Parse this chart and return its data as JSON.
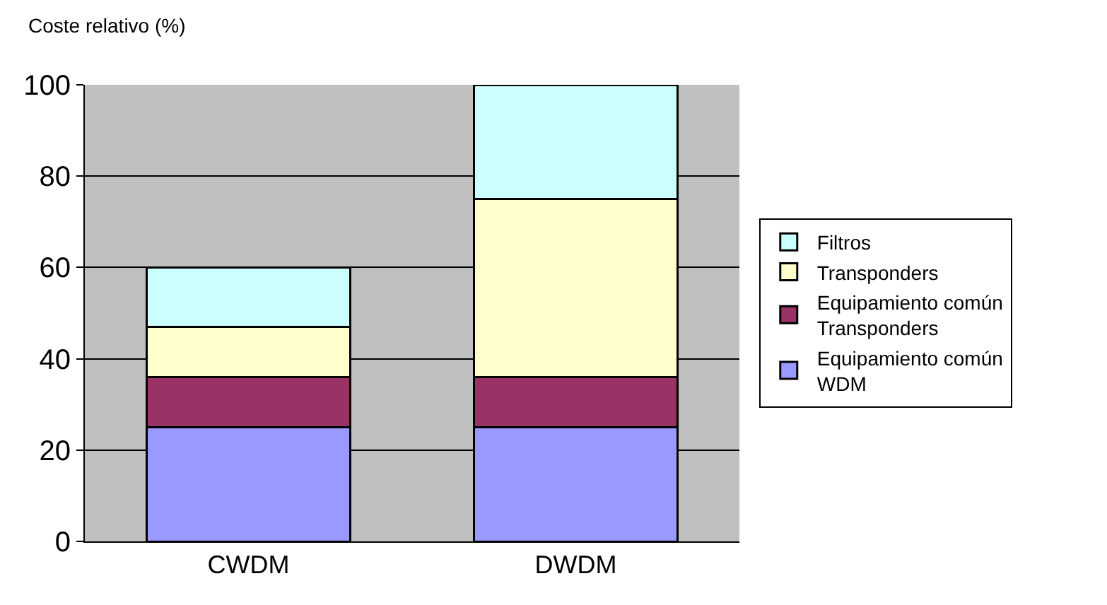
{
  "chart_data": {
    "type": "bar",
    "stacked": true,
    "ylabel": "Coste relativo (%)",
    "categories": [
      "CWDM",
      "DWDM"
    ],
    "series": [
      {
        "name": "Equipamiento común WDM",
        "color": "#9999ff",
        "values": [
          25,
          25
        ]
      },
      {
        "name": "Equipamiento común Transponders",
        "color": "#993366",
        "values": [
          11,
          11
        ]
      },
      {
        "name": "Transponders",
        "color": "#ffffcc",
        "values": [
          11,
          39
        ]
      },
      {
        "name": "Filtros",
        "color": "#ccffff",
        "values": [
          13,
          25
        ]
      }
    ],
    "ylim": [
      0,
      100
    ],
    "yticks": [
      0,
      20,
      40,
      60,
      80,
      100
    ],
    "grid": "y",
    "legend": "right"
  }
}
